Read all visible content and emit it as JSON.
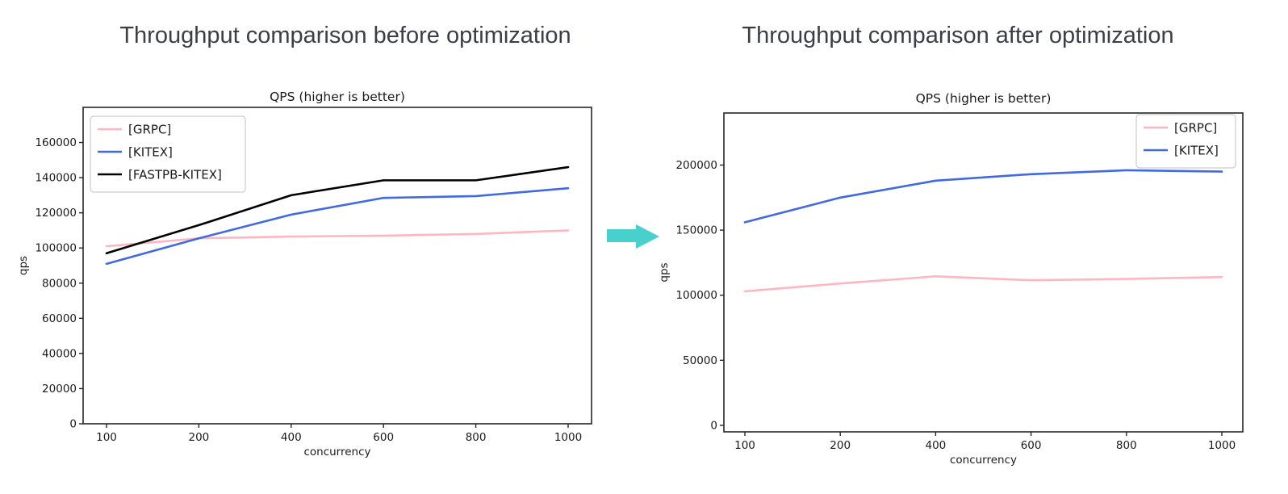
{
  "headings": {
    "left": "Throughput comparison before optimization",
    "right": "Throughput comparison after optimization"
  },
  "arrow": {
    "meaning": "before transforms to after",
    "color": "#48d1cc"
  },
  "chart_data": [
    {
      "id": "before",
      "type": "line",
      "title": "QPS (higher is better)",
      "xlabel": "concurrency",
      "ylabel": "qps",
      "categories": [
        100,
        200,
        400,
        600,
        800,
        1000
      ],
      "series": [
        {
          "name": "[GRPC]",
          "color": "#ffb6c1",
          "values": [
            101000,
            105500,
            106500,
            107000,
            108000,
            110000
          ]
        },
        {
          "name": "[KITEX]",
          "color": "#4169e1",
          "values": [
            91000,
            105500,
            119000,
            128500,
            129500,
            134000
          ]
        },
        {
          "name": "[FASTPB-KITEX]",
          "color": "#000000",
          "values": [
            97000,
            113000,
            130000,
            138500,
            138500,
            146000
          ]
        }
      ],
      "yticks": [
        0,
        20000,
        40000,
        60000,
        80000,
        100000,
        120000,
        140000,
        160000
      ],
      "ylim": [
        0,
        180000
      ],
      "legend_position": "upper-left",
      "grid": false
    },
    {
      "id": "after",
      "type": "line",
      "title": "QPS (higher is better)",
      "xlabel": "concurrency",
      "ylabel": "qps",
      "categories": [
        100,
        200,
        400,
        600,
        800,
        1000
      ],
      "series": [
        {
          "name": "[GRPC]",
          "color": "#ffb6c1",
          "values": [
            103000,
            109000,
            114500,
            111500,
            112500,
            114000
          ]
        },
        {
          "name": "[KITEX]",
          "color": "#4169e1",
          "values": [
            156000,
            175000,
            188000,
            193000,
            196000,
            195000
          ]
        }
      ],
      "yticks": [
        0,
        50000,
        100000,
        150000,
        200000
      ],
      "ylim": [
        -5000,
        240000
      ],
      "legend_position": "upper-right",
      "grid": false
    }
  ]
}
